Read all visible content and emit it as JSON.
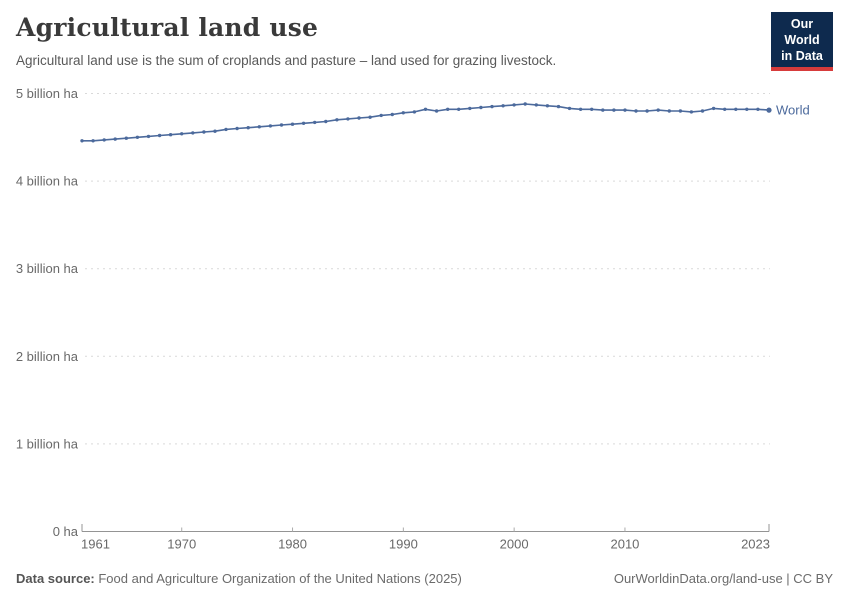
{
  "header": {
    "title": "Agricultural land use",
    "subtitle": "Agricultural land use is the sum of croplands and pasture – land used for grazing livestock.",
    "logo": {
      "line1": "Our World",
      "line2": "in Data",
      "bg_color": "#0e2a4e",
      "accent_color": "#d73b3b"
    }
  },
  "footer": {
    "source_label": "Data source:",
    "source_text": " Food and Agriculture Organization of the United Nations (2025)",
    "credit": "OurWorldinData.org/land-use | CC BY"
  },
  "chart_data": {
    "type": "line",
    "title": "Agricultural land use",
    "xlabel": "",
    "ylabel": "",
    "unit": "billion ha",
    "xlim": [
      1961,
      2023
    ],
    "ylim": [
      0,
      5
    ],
    "grid": "horizontal-dashed",
    "legend_position": "end-of-line",
    "x_ticks": [
      1961,
      1970,
      1980,
      1990,
      2000,
      2010,
      2023
    ],
    "y_ticks": [
      {
        "value": 0,
        "label": "0 ha"
      },
      {
        "value": 1,
        "label": "1 billion ha"
      },
      {
        "value": 2,
        "label": "2 billion ha"
      },
      {
        "value": 3,
        "label": "3 billion ha"
      },
      {
        "value": 4,
        "label": "4 billion ha"
      },
      {
        "value": 5,
        "label": "5 billion ha"
      }
    ],
    "x": [
      1961,
      1962,
      1963,
      1964,
      1965,
      1966,
      1967,
      1968,
      1969,
      1970,
      1971,
      1972,
      1973,
      1974,
      1975,
      1976,
      1977,
      1978,
      1979,
      1980,
      1981,
      1982,
      1983,
      1984,
      1985,
      1986,
      1987,
      1988,
      1989,
      1990,
      1991,
      1992,
      1993,
      1994,
      1995,
      1996,
      1997,
      1998,
      1999,
      2000,
      2001,
      2002,
      2003,
      2004,
      2005,
      2006,
      2007,
      2008,
      2009,
      2010,
      2011,
      2012,
      2013,
      2014,
      2015,
      2016,
      2017,
      2018,
      2019,
      2020,
      2021,
      2022,
      2023
    ],
    "series": [
      {
        "name": "World",
        "color": "#4c6a9c",
        "values": [
          4.46,
          4.46,
          4.47,
          4.48,
          4.49,
          4.5,
          4.51,
          4.52,
          4.53,
          4.54,
          4.55,
          4.56,
          4.57,
          4.59,
          4.6,
          4.61,
          4.62,
          4.63,
          4.64,
          4.65,
          4.66,
          4.67,
          4.68,
          4.7,
          4.71,
          4.72,
          4.73,
          4.75,
          4.76,
          4.78,
          4.79,
          4.82,
          4.8,
          4.82,
          4.82,
          4.83,
          4.84,
          4.85,
          4.86,
          4.87,
          4.88,
          4.87,
          4.86,
          4.85,
          4.83,
          4.82,
          4.82,
          4.81,
          4.81,
          4.81,
          4.8,
          4.8,
          4.81,
          4.8,
          4.8,
          4.79,
          4.8,
          4.83,
          4.82,
          4.82,
          4.82,
          4.82,
          4.81
        ]
      }
    ]
  }
}
